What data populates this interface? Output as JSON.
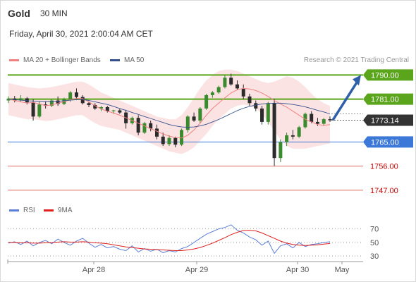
{
  "header": {
    "symbol": "Gold",
    "timeframe": "30 MIN",
    "datetime": "Friday, April 30, 2021 2:00:04 AM CET",
    "credit": "Research © 2021 Trading Central"
  },
  "legend": {
    "price": [
      {
        "label": "MA 20 + Bollinger Bands",
        "color": "#f08080"
      },
      {
        "label": "MA 50",
        "color": "#34508c"
      }
    ],
    "rsi": [
      {
        "label": "RSI",
        "color": "#5b7fd6"
      },
      {
        "label": "9MA",
        "color": "#e02020"
      }
    ]
  },
  "chart_data": [
    {
      "type": "candlestick",
      "title": "Gold",
      "ylim": [
        1743,
        1793
      ],
      "last_price": 1773.14,
      "levels": [
        {
          "value": 1790.0,
          "label": "1790.00",
          "kind": "resistance",
          "color": "#5aa51b"
        },
        {
          "value": 1781.0,
          "label": "1781.00",
          "kind": "resistance",
          "color": "#5aa51b"
        },
        {
          "value": 1773.14,
          "label": "1773.14",
          "kind": "last",
          "color": "#333333"
        },
        {
          "value": 1765.0,
          "label": "1765.00",
          "kind": "pivot",
          "color": "#3c78d8"
        },
        {
          "value": 1756.0,
          "label": "1756.00",
          "kind": "support",
          "color": "#e06666"
        },
        {
          "value": 1747.0,
          "label": "1747.00",
          "kind": "support",
          "color": "#e06666"
        }
      ],
      "projection": {
        "from": 1773.14,
        "to": 1790.0,
        "color": "#2e5fa8"
      },
      "series": [
        {
          "name": "MA 20 + Bollinger Bands",
          "values": [
            1781,
            1780.5,
            1780,
            1779.5,
            1779.8,
            1779.2,
            1778.6,
            1778.8,
            1779.5,
            1780,
            1780.8,
            1781.3,
            1781.2,
            1780,
            1778.5,
            1777.3,
            1776.5,
            1775.8,
            1775,
            1774,
            1773,
            1772,
            1771,
            1770,
            1769,
            1768,
            1767.2,
            1766.6,
            1766.5,
            1767.5,
            1769.5,
            1772,
            1775,
            1777.5,
            1779.5,
            1781.5,
            1783.3,
            1784.5,
            1785,
            1784.8,
            1784.2,
            1783.3,
            1782,
            1780.5,
            1779.2,
            1778,
            1776.5,
            1775,
            1773.5,
            1772.5,
            1771.5,
            1771.2,
            1771.5
          ]
        },
        {
          "name": "MA 50",
          "values": [
            1781,
            1780.8,
            1780.6,
            1780.4,
            1780.3,
            1780.2,
            1780.1,
            1780.1,
            1780.2,
            1780.4,
            1780.6,
            1780.8,
            1780.9,
            1780.5,
            1780,
            1779.5,
            1779,
            1778.3,
            1777.5,
            1776.8,
            1776,
            1775.3,
            1774.5,
            1773.8,
            1773,
            1772.3,
            1771.5,
            1771,
            1770.6,
            1770.5,
            1770.6,
            1771,
            1771.6,
            1772.5,
            1773.4,
            1774.5,
            1775.6,
            1776.7,
            1777.6,
            1778.3,
            1778.8,
            1779.2,
            1779.4,
            1779.5,
            1779.5,
            1779.3,
            1779,
            1778.6,
            1778.1,
            1777.5,
            1776.8,
            1776.2,
            1775.5
          ]
        }
      ],
      "bands": {
        "upper": [
          1787,
          1786.5,
          1786,
          1785.5,
          1785.2,
          1785,
          1785.2,
          1785.5,
          1786,
          1786.5,
          1787,
          1787.5,
          1787.5,
          1786.5,
          1785,
          1783.5,
          1782.5,
          1781.5,
          1780.5,
          1779.5,
          1778.5,
          1777.5,
          1776.5,
          1775.5,
          1774.5,
          1774,
          1773.5,
          1773.5,
          1775,
          1778,
          1781.5,
          1785,
          1788,
          1790,
          1791.5,
          1792,
          1792,
          1791.5,
          1790.5,
          1789.5,
          1788.5,
          1787.5,
          1787,
          1787.5,
          1788.5,
          1789.5,
          1789,
          1787.5,
          1785.5,
          1783,
          1781,
          1779.5,
          1778.5
        ],
        "lower": [
          1775,
          1774.5,
          1774,
          1773.5,
          1773.5,
          1773.2,
          1772.8,
          1773,
          1773.5,
          1774,
          1774.5,
          1775,
          1775,
          1773.5,
          1772,
          1771,
          1770.5,
          1770,
          1769.5,
          1768.5,
          1767.5,
          1766.5,
          1765.5,
          1764.5,
          1763.5,
          1762.5,
          1761.5,
          1761,
          1760.5,
          1761.5,
          1763,
          1765.5,
          1768,
          1771,
          1773.5,
          1775.5,
          1777.5,
          1778.5,
          1779,
          1778.5,
          1777.5,
          1775.5,
          1772.5,
          1769,
          1766,
          1763.5,
          1762.5,
          1762.5,
          1762.5,
          1763,
          1763.5,
          1764,
          1764.5
        ]
      },
      "candles_sampled": [
        {
          "o": 1780.5,
          "h": 1782,
          "l": 1779.5,
          "c": 1781.2
        },
        {
          "o": 1781.2,
          "h": 1782.2,
          "l": 1779.8,
          "c": 1780.5
        },
        {
          "o": 1780.5,
          "h": 1782.5,
          "l": 1780,
          "c": 1781.3
        },
        {
          "o": 1781.3,
          "h": 1781.8,
          "l": 1779,
          "c": 1779.8
        },
        {
          "o": 1779.8,
          "h": 1781,
          "l": 1773,
          "c": 1774.5
        },
        {
          "o": 1774.5,
          "h": 1780,
          "l": 1774,
          "c": 1779
        },
        {
          "o": 1779,
          "h": 1780,
          "l": 1777.5,
          "c": 1778.5
        },
        {
          "o": 1778.5,
          "h": 1781,
          "l": 1778,
          "c": 1780.5
        },
        {
          "o": 1780.5,
          "h": 1782,
          "l": 1778.5,
          "c": 1779.2
        },
        {
          "o": 1779.2,
          "h": 1781.5,
          "l": 1778.8,
          "c": 1781
        },
        {
          "o": 1781,
          "h": 1784,
          "l": 1780,
          "c": 1783.5
        },
        {
          "o": 1783.5,
          "h": 1785,
          "l": 1781,
          "c": 1781.8
        },
        {
          "o": 1781.8,
          "h": 1782.5,
          "l": 1779,
          "c": 1779.5
        },
        {
          "o": 1779.5,
          "h": 1780,
          "l": 1778,
          "c": 1778.8
        },
        {
          "o": 1778.8,
          "h": 1779.5,
          "l": 1777,
          "c": 1777.5
        },
        {
          "o": 1777.5,
          "h": 1778.5,
          "l": 1776.5,
          "c": 1778
        },
        {
          "o": 1778,
          "h": 1778.5,
          "l": 1776,
          "c": 1776.5
        },
        {
          "o": 1776.5,
          "h": 1777,
          "l": 1775.5,
          "c": 1776.8
        },
        {
          "o": 1776.8,
          "h": 1777.5,
          "l": 1775.5,
          "c": 1776
        },
        {
          "o": 1776,
          "h": 1777,
          "l": 1770,
          "c": 1772
        },
        {
          "o": 1772,
          "h": 1774.5,
          "l": 1771.5,
          "c": 1774
        },
        {
          "o": 1774,
          "h": 1775,
          "l": 1767.5,
          "c": 1768.5
        },
        {
          "o": 1768.5,
          "h": 1772.5,
          "l": 1768,
          "c": 1772
        },
        {
          "o": 1772,
          "h": 1773,
          "l": 1769,
          "c": 1770
        },
        {
          "o": 1770,
          "h": 1771.5,
          "l": 1766,
          "c": 1767
        },
        {
          "o": 1767,
          "h": 1768.5,
          "l": 1763.5,
          "c": 1764.2
        },
        {
          "o": 1764.2,
          "h": 1767.5,
          "l": 1763.5,
          "c": 1766.5
        },
        {
          "o": 1766.5,
          "h": 1767,
          "l": 1763,
          "c": 1764
        },
        {
          "o": 1764,
          "h": 1770,
          "l": 1763.5,
          "c": 1769.5
        },
        {
          "o": 1769.5,
          "h": 1775,
          "l": 1768.5,
          "c": 1774.5
        },
        {
          "o": 1774.5,
          "h": 1776,
          "l": 1772.5,
          "c": 1773
        },
        {
          "o": 1773,
          "h": 1778,
          "l": 1772,
          "c": 1777.5
        },
        {
          "o": 1777.5,
          "h": 1783,
          "l": 1777,
          "c": 1782.5
        },
        {
          "o": 1782.5,
          "h": 1784,
          "l": 1781.5,
          "c": 1783.5
        },
        {
          "o": 1783.5,
          "h": 1786,
          "l": 1783,
          "c": 1785.5
        },
        {
          "o": 1785.5,
          "h": 1790,
          "l": 1785,
          "c": 1789
        },
        {
          "o": 1789,
          "h": 1790.5,
          "l": 1786,
          "c": 1786.5
        },
        {
          "o": 1786.5,
          "h": 1788,
          "l": 1784.5,
          "c": 1785
        },
        {
          "o": 1785,
          "h": 1786.5,
          "l": 1781,
          "c": 1782
        },
        {
          "o": 1782,
          "h": 1783,
          "l": 1778.5,
          "c": 1779.5
        },
        {
          "o": 1779.5,
          "h": 1780.5,
          "l": 1776.5,
          "c": 1777.5
        },
        {
          "o": 1777.5,
          "h": 1778.5,
          "l": 1771.5,
          "c": 1772.5
        },
        {
          "o": 1772.5,
          "h": 1780,
          "l": 1771.5,
          "c": 1779.5
        },
        {
          "o": 1779.5,
          "h": 1781,
          "l": 1756,
          "c": 1759
        },
        {
          "o": 1759,
          "h": 1766,
          "l": 1757.5,
          "c": 1765
        },
        {
          "o": 1765,
          "h": 1768.5,
          "l": 1763.5,
          "c": 1767.5
        },
        {
          "o": 1767.5,
          "h": 1769.5,
          "l": 1766,
          "c": 1767
        },
        {
          "o": 1767,
          "h": 1771,
          "l": 1766.5,
          "c": 1770.5
        },
        {
          "o": 1770.5,
          "h": 1776,
          "l": 1770,
          "c": 1775.5
        },
        {
          "o": 1775.5,
          "h": 1776.5,
          "l": 1772,
          "c": 1772.5
        },
        {
          "o": 1772.5,
          "h": 1774,
          "l": 1771,
          "c": 1771.8
        },
        {
          "o": 1771.8,
          "h": 1774,
          "l": 1771,
          "c": 1773.5
        },
        {
          "o": 1773.5,
          "h": 1774.5,
          "l": 1772.5,
          "c": 1773.1
        }
      ],
      "x_ticks": [
        "Apr 28",
        "Apr 29",
        "Apr 30",
        "May"
      ],
      "grid": false
    },
    {
      "type": "line",
      "title": "RSI",
      "ylim": [
        25,
        80
      ],
      "levels": [
        {
          "value": 70,
          "label": "70"
        },
        {
          "value": 50,
          "label": "50"
        },
        {
          "value": 30,
          "label": "30"
        }
      ],
      "series": [
        {
          "name": "RSI",
          "values": [
            49,
            51,
            47,
            52,
            45,
            50,
            53,
            48,
            55,
            50,
            46,
            52,
            56,
            49,
            43,
            47,
            42,
            44,
            40,
            38,
            45,
            36,
            41,
            37,
            40,
            35,
            38,
            36,
            41,
            44,
            50,
            56,
            62,
            66,
            70,
            72,
            76,
            68,
            64,
            58,
            54,
            46,
            52,
            34,
            45,
            48,
            42,
            50,
            44,
            47,
            48,
            50,
            51
          ]
        },
        {
          "name": "9MA",
          "values": [
            50,
            50,
            49.5,
            49.5,
            49,
            49,
            49.5,
            50,
            50.5,
            51,
            50.5,
            50.5,
            51,
            50.5,
            49.5,
            49,
            48,
            46.5,
            45,
            43.5,
            42.5,
            41.5,
            40.5,
            40,
            39.5,
            39,
            38.5,
            38,
            38,
            39,
            40.5,
            42.5,
            45.5,
            49,
            53,
            57,
            61.5,
            65,
            67.5,
            68,
            67,
            64,
            60,
            56,
            52,
            49,
            47,
            46,
            45.5,
            46,
            46.5,
            47.5,
            48.5
          ]
        }
      ],
      "x_ticks": [
        "Apr 28",
        "Apr 29",
        "Apr 30",
        "May"
      ]
    }
  ]
}
